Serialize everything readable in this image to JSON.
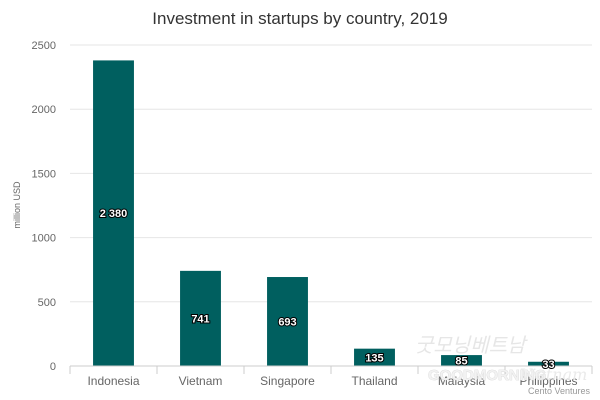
{
  "chart_data": {
    "type": "bar",
    "title": "Investment in startups by country, 2019",
    "ylabel": "million USD",
    "xlabel": "",
    "categories": [
      "Indonesia",
      "Vietnam",
      "Singapore",
      "Thailand",
      "Malaysia",
      "Philippines"
    ],
    "values": [
      2380,
      741,
      693,
      135,
      85,
      33
    ],
    "data_labels": [
      "2 380",
      "741",
      "693",
      "135",
      "85",
      "33"
    ],
    "ylim": [
      0,
      2500
    ],
    "yticks": [
      0,
      500,
      1000,
      1500,
      2000,
      2500
    ],
    "bar_color": "#005f5f",
    "grid": true,
    "legend": "none"
  },
  "credit": "Cento Ventures",
  "watermark": {
    "korean": "굿모닝베트남",
    "text": "GOODMORNING",
    "sub": "Vietnam"
  }
}
